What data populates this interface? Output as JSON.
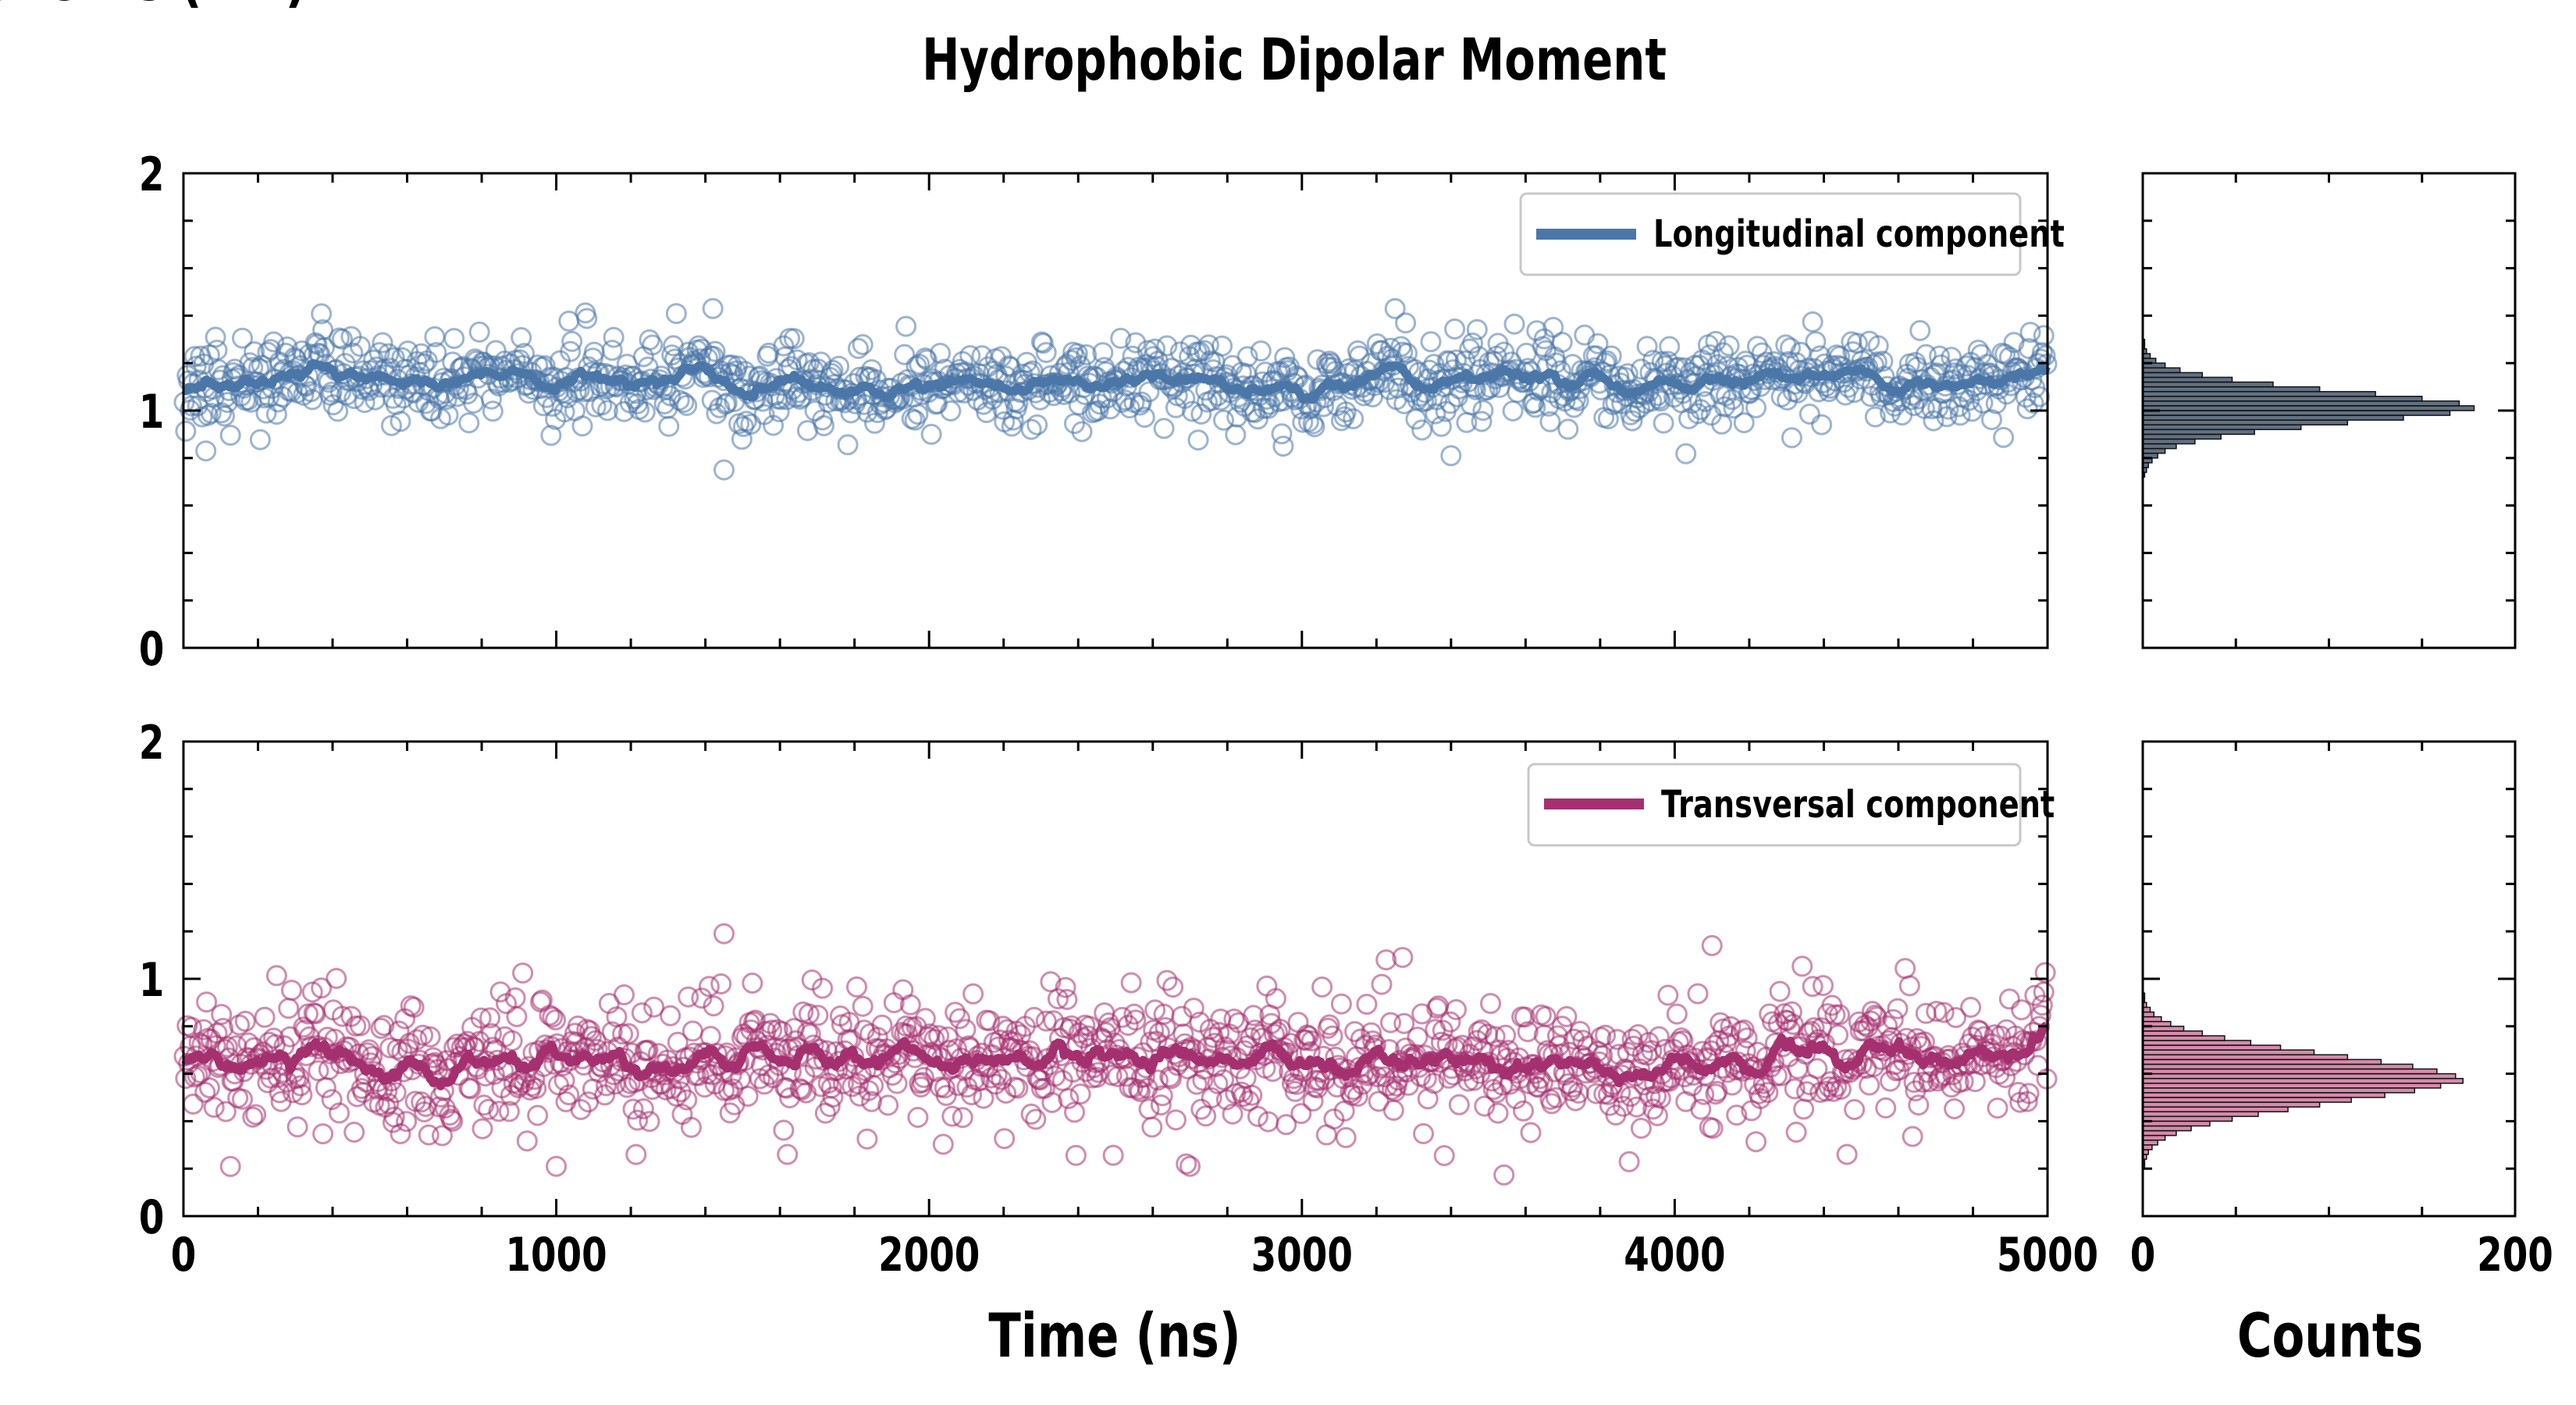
{
  "chart_data": {
    "type": "scatter",
    "title": "Hydrophobic Dipolar Moment",
    "ylabel": "HDM components (nm)",
    "xlabel": "Time (ns)",
    "hist_xlabel": "Counts",
    "xlim": [
      0,
      5000
    ],
    "ylim": [
      0,
      2
    ],
    "hist_xlim": [
      0,
      200
    ],
    "xticks": [
      "0",
      "1000",
      "2000",
      "3000",
      "4000",
      "5000"
    ],
    "yticks": [
      "0",
      "1",
      "2"
    ],
    "hist_xticks": [
      "0",
      "200"
    ],
    "legend_placement": "top-right",
    "colors": {
      "longitudinal": "#4a77a8",
      "longitudinal_fill": "#2e4258",
      "transversal": "#a5306f",
      "transversal_fill": "#c7648f"
    },
    "series": [
      {
        "name": "Longitudinal component",
        "mean": 1.12,
        "spread": 0.085,
        "n_points": 1250,
        "running_mean_level": 1.12,
        "outliers": [
          [
            1450,
            0.75
          ],
          [
            1420,
            1.43
          ],
          [
            3400,
            0.81
          ],
          [
            60,
            0.83
          ],
          [
            2950,
            0.85
          ]
        ],
        "histogram": {
          "bin_start": 0.72,
          "bin_width": 0.02,
          "counts": [
            1,
            2,
            3,
            5,
            8,
            12,
            18,
            28,
            42,
            60,
            85,
            110,
            140,
            165,
            178,
            170,
            150,
            125,
            95,
            70,
            48,
            32,
            20,
            12,
            7,
            4,
            2,
            1,
            1,
            0,
            0,
            0,
            0,
            0,
            0
          ]
        }
      },
      {
        "name": "Transversal component",
        "mean": 0.66,
        "spread": 0.13,
        "n_points": 1250,
        "running_mean_level": 0.66,
        "outliers": [
          [
            1450,
            1.19
          ],
          [
            1000,
            0.21
          ],
          [
            2700,
            0.21
          ],
          [
            2690,
            0.22
          ],
          [
            1620,
            0.26
          ],
          [
            4100,
            1.14
          ],
          [
            3270,
            1.09
          ]
        ],
        "histogram": {
          "bin_start": 0.2,
          "bin_width": 0.02,
          "counts": [
            1,
            1,
            2,
            3,
            5,
            8,
            12,
            18,
            26,
            36,
            48,
            62,
            78,
            95,
            112,
            130,
            146,
            160,
            172,
            168,
            158,
            145,
            128,
            110,
            92,
            74,
            58,
            44,
            32,
            22,
            15,
            10,
            6,
            4,
            2,
            1,
            1,
            0,
            0,
            0
          ]
        }
      }
    ]
  }
}
